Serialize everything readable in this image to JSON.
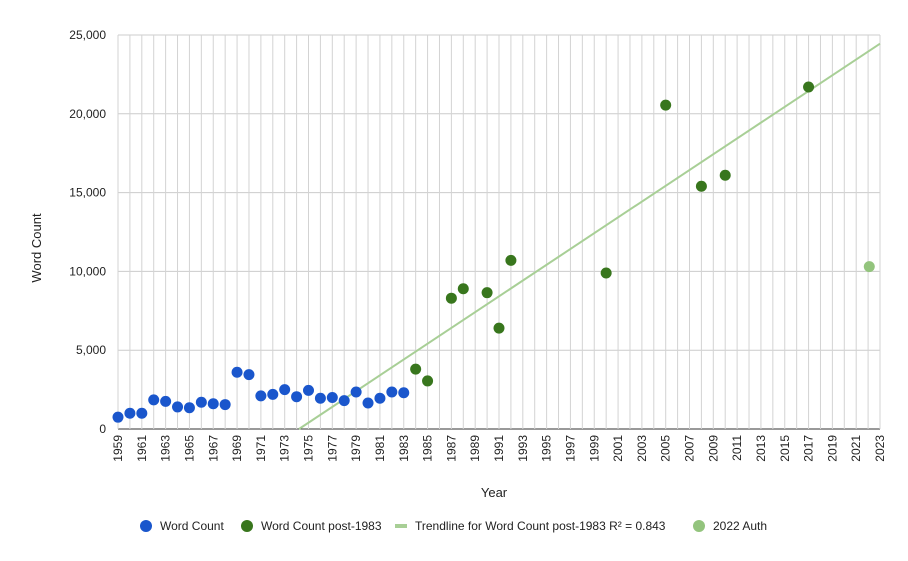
{
  "chart_data": {
    "type": "scatter",
    "xlabel": "Year",
    "ylabel": "Word Count",
    "xlim": [
      1959,
      2023
    ],
    "ylim": [
      0,
      25000
    ],
    "x_ticks": [
      1959,
      1961,
      1963,
      1965,
      1967,
      1969,
      1971,
      1973,
      1975,
      1977,
      1979,
      1981,
      1983,
      1985,
      1987,
      1989,
      1991,
      1993,
      1995,
      1997,
      1999,
      2001,
      2003,
      2005,
      2007,
      2009,
      2011,
      2013,
      2015,
      2017,
      2019,
      2021,
      2023
    ],
    "y_ticks": [
      0,
      5000,
      10000,
      15000,
      20000,
      25000
    ],
    "y_tick_labels": [
      "0",
      "5,000",
      "10,000",
      "15,000",
      "20,000",
      "25,000"
    ],
    "grid": true,
    "legend_position": "bottom",
    "series": [
      {
        "name": "Word Count",
        "color": "#1a56cc",
        "points": [
          {
            "x": 1959,
            "y": 750
          },
          {
            "x": 1960,
            "y": 1000
          },
          {
            "x": 1961,
            "y": 1000
          },
          {
            "x": 1962,
            "y": 1850
          },
          {
            "x": 1963,
            "y": 1750
          },
          {
            "x": 1964,
            "y": 1400
          },
          {
            "x": 1965,
            "y": 1350
          },
          {
            "x": 1966,
            "y": 1700
          },
          {
            "x": 1967,
            "y": 1600
          },
          {
            "x": 1968,
            "y": 1550
          },
          {
            "x": 1969,
            "y": 3600
          },
          {
            "x": 1970,
            "y": 3450
          },
          {
            "x": 1971,
            "y": 2100
          },
          {
            "x": 1972,
            "y": 2200
          },
          {
            "x": 1973,
            "y": 2500
          },
          {
            "x": 1974,
            "y": 2050
          },
          {
            "x": 1975,
            "y": 2450
          },
          {
            "x": 1976,
            "y": 1950
          },
          {
            "x": 1977,
            "y": 2000
          },
          {
            "x": 1978,
            "y": 1800
          },
          {
            "x": 1979,
            "y": 2350
          },
          {
            "x": 1980,
            "y": 1650
          },
          {
            "x": 1981,
            "y": 1950
          },
          {
            "x": 1982,
            "y": 2350
          },
          {
            "x": 1983,
            "y": 2300
          }
        ]
      },
      {
        "name": "Word Count post-1983",
        "color": "#38761d",
        "points": [
          {
            "x": 1984,
            "y": 3800
          },
          {
            "x": 1985,
            "y": 3050
          },
          {
            "x": 1987,
            "y": 8300
          },
          {
            "x": 1988,
            "y": 8900
          },
          {
            "x": 1990,
            "y": 8650
          },
          {
            "x": 1991,
            "y": 6400
          },
          {
            "x": 1992,
            "y": 10700
          },
          {
            "x": 2000,
            "y": 9900
          },
          {
            "x": 2005,
            "y": 20550
          },
          {
            "x": 2008,
            "y": 15400
          },
          {
            "x": 2010,
            "y": 16100
          },
          {
            "x": 2017,
            "y": 21700
          }
        ]
      },
      {
        "name": "2022 Auth",
        "color": "#93c47d",
        "points": [
          {
            "x": 2022.1,
            "y": 10300
          }
        ]
      }
    ],
    "trendline": {
      "name": "Trendline for Word Count post-1983 R² = 0.843",
      "color": "#a8cf96",
      "from": {
        "x": 1974.2,
        "y": 0
      },
      "to": {
        "x": 2023,
        "y": 24450
      }
    },
    "legend": [
      {
        "label": "Word Count",
        "symbol": "dot",
        "color": "#1a56cc"
      },
      {
        "label": "Word Count post-1983",
        "symbol": "dot",
        "color": "#38761d"
      },
      {
        "label": "Trendline for Word Count post-1983 R² = 0.843",
        "symbol": "line",
        "color": "#a8cf96"
      },
      {
        "label": "2022 Auth",
        "symbol": "dot",
        "color": "#93c47d"
      }
    ]
  }
}
